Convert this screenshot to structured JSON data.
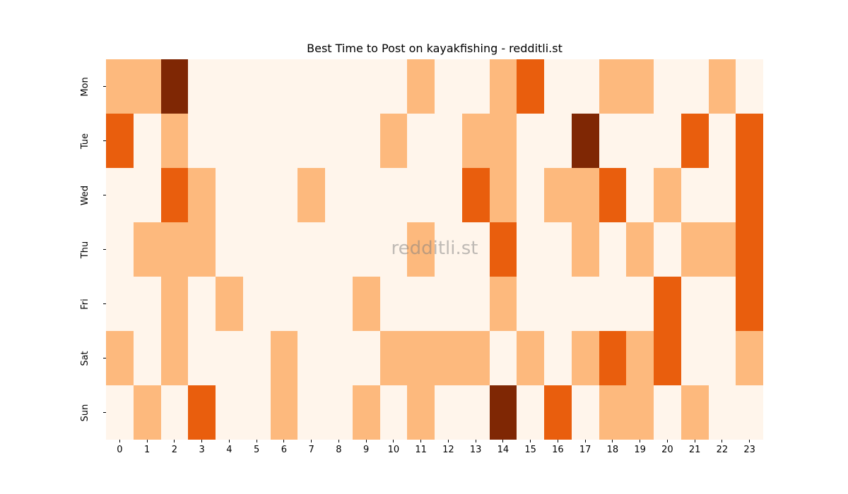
{
  "chart_data": {
    "type": "heatmap",
    "title": "Best Time to Post on kayakfishing - redditli.st",
    "xlabel": "",
    "ylabel": "",
    "x": [
      "0",
      "1",
      "2",
      "3",
      "4",
      "5",
      "6",
      "7",
      "8",
      "9",
      "10",
      "11",
      "12",
      "13",
      "14",
      "15",
      "16",
      "17",
      "18",
      "19",
      "20",
      "21",
      "22",
      "23"
    ],
    "y": [
      "Mon",
      "Tue",
      "Wed",
      "Thu",
      "Fri",
      "Sat",
      "Sun"
    ],
    "colormap": "Oranges",
    "value_levels": {
      "0": "none",
      "1": "low",
      "2": "medium",
      "3": "high"
    },
    "colors": {
      "0": "#fff5eb",
      "1": "#fdb97d",
      "2": "#e95e0d",
      "3": "#7f2704"
    },
    "values": [
      [
        1,
        1,
        3,
        0,
        0,
        0,
        0,
        0,
        0,
        0,
        0,
        1,
        0,
        0,
        1,
        2,
        0,
        0,
        1,
        1,
        0,
        0,
        1,
        0
      ],
      [
        2,
        0,
        1,
        0,
        0,
        0,
        0,
        0,
        0,
        0,
        1,
        0,
        0,
        1,
        1,
        0,
        0,
        3,
        0,
        0,
        0,
        2,
        0,
        2
      ],
      [
        0,
        0,
        2,
        1,
        0,
        0,
        0,
        1,
        0,
        0,
        0,
        0,
        0,
        2,
        1,
        0,
        1,
        1,
        2,
        0,
        1,
        0,
        0,
        2
      ],
      [
        0,
        1,
        1,
        1,
        0,
        0,
        0,
        0,
        0,
        0,
        0,
        1,
        0,
        0,
        2,
        0,
        0,
        1,
        0,
        1,
        0,
        1,
        1,
        2
      ],
      [
        0,
        0,
        1,
        0,
        1,
        0,
        0,
        0,
        0,
        1,
        0,
        0,
        0,
        0,
        1,
        0,
        0,
        0,
        0,
        0,
        2,
        0,
        0,
        2
      ],
      [
        1,
        0,
        1,
        0,
        0,
        0,
        1,
        0,
        0,
        0,
        1,
        1,
        1,
        1,
        0,
        1,
        0,
        1,
        2,
        1,
        2,
        0,
        0,
        1
      ],
      [
        0,
        1,
        0,
        2,
        0,
        0,
        1,
        0,
        0,
        1,
        0,
        1,
        0,
        0,
        3,
        0,
        2,
        0,
        1,
        1,
        0,
        1,
        0,
        0
      ]
    ],
    "grid": false,
    "legend": "none"
  },
  "watermark": "redditli.st"
}
